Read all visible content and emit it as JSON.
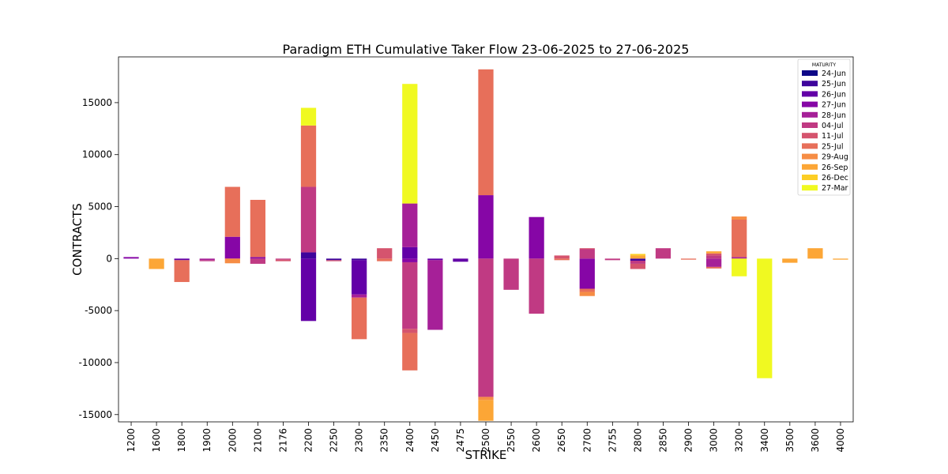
{
  "chart_data": {
    "type": "bar",
    "stacked": true,
    "title": "Paradigm ETH Cumulative Taker Flow 23-06-2025 to 27-06-2025",
    "xlabel": "STRIKE",
    "ylabel": "CONTRACTS",
    "ylim": [
      -15700,
      19400
    ],
    "yticks": [
      -15000,
      -10000,
      -5000,
      0,
      5000,
      10000,
      15000
    ],
    "grid": false,
    "legend": {
      "title": "MATURITY",
      "placement": "top-right"
    },
    "categories": [
      "1200",
      "1600",
      "1800",
      "1900",
      "2000",
      "2100",
      "2176",
      "2200",
      "2250",
      "2300",
      "2350",
      "2400",
      "2450",
      "2475",
      "2500",
      "2550",
      "2600",
      "2650",
      "2700",
      "2755",
      "2800",
      "2850",
      "2900",
      "3000",
      "3200",
      "3400",
      "3500",
      "3600",
      "4000"
    ],
    "series": [
      {
        "name": "24-Jun",
        "color": "#0d0887",
        "values": [
          0,
          0,
          0,
          0,
          0,
          0,
          0,
          0,
          0,
          0,
          0,
          0,
          0,
          0,
          0,
          0,
          0,
          0,
          0,
          0,
          0,
          0,
          0,
          0,
          0,
          0,
          0,
          0,
          0
        ]
      },
      {
        "name": "25-Jun",
        "color": "#3e049c",
        "values": [
          0,
          0,
          0,
          0,
          0,
          0,
          0,
          600,
          -150,
          -150,
          0,
          0,
          0,
          0,
          0,
          0,
          0,
          0,
          0,
          0,
          -200,
          0,
          0,
          0,
          0,
          0,
          0,
          0,
          0
        ]
      },
      {
        "name": "26-Jun",
        "color": "#6300a7",
        "values": [
          0,
          0,
          -150,
          0,
          0,
          0,
          0,
          -6000,
          0,
          -3300,
          0,
          1100,
          -150,
          -300,
          0,
          0,
          0,
          0,
          0,
          0,
          0,
          0,
          0,
          0,
          0,
          0,
          0,
          0,
          0
        ]
      },
      {
        "name": "27-Jun",
        "color": "#8606a6",
        "values": [
          150,
          0,
          0,
          0,
          2100,
          150,
          0,
          0,
          0,
          0,
          0,
          -350,
          0,
          0,
          6100,
          0,
          4000,
          0,
          -2900,
          0,
          0,
          0,
          0,
          0,
          0,
          0,
          0,
          0,
          0
        ]
      },
      {
        "name": "28-Jun",
        "color": "#a62098",
        "values": [
          0,
          0,
          0,
          -150,
          0,
          0,
          0,
          0,
          0,
          -300,
          0,
          4200,
          -6700,
          0,
          0,
          0,
          0,
          0,
          0,
          0,
          0,
          0,
          0,
          -800,
          150,
          0,
          0,
          0,
          0
        ]
      },
      {
        "name": "04-Jul",
        "color": "#c03a83",
        "values": [
          0,
          0,
          0,
          -100,
          0,
          -500,
          -100,
          6300,
          0,
          0,
          0,
          -6400,
          0,
          0,
          -13300,
          -3000,
          -5300,
          0,
          900,
          -150,
          -300,
          1000,
          0,
          300,
          0,
          0,
          0,
          0,
          0
        ]
      },
      {
        "name": "11-Jul",
        "color": "#d5546e",
        "values": [
          0,
          0,
          0,
          0,
          0,
          0,
          -150,
          0,
          -100,
          0,
          1000,
          -400,
          0,
          0,
          0,
          0,
          0,
          300,
          100,
          0,
          -500,
          0,
          0,
          200,
          0,
          0,
          0,
          0,
          0
        ]
      },
      {
        "name": "25-Jul",
        "color": "#e76f5a",
        "values": [
          0,
          0,
          -2100,
          0,
          4800,
          5500,
          0,
          5900,
          0,
          -4000,
          -250,
          -3600,
          0,
          0,
          12100,
          0,
          0,
          -150,
          -300,
          0,
          0,
          0,
          -100,
          -150,
          3600,
          0,
          0,
          0,
          0
        ]
      },
      {
        "name": "29-Aug",
        "color": "#f68d45",
        "values": [
          0,
          0,
          0,
          0,
          -450,
          0,
          0,
          0,
          0,
          0,
          0,
          0,
          0,
          0,
          -300,
          0,
          0,
          0,
          -400,
          0,
          0,
          0,
          0,
          0,
          300,
          0,
          0,
          0,
          0
        ]
      },
      {
        "name": "26-Sep",
        "color": "#fca636",
        "values": [
          0,
          -1000,
          0,
          0,
          0,
          0,
          0,
          0,
          0,
          0,
          0,
          0,
          0,
          0,
          -2000,
          0,
          0,
          0,
          0,
          0,
          300,
          0,
          0,
          200,
          0,
          0,
          -400,
          1000,
          -100
        ]
      },
      {
        "name": "26-Dec",
        "color": "#fcce25",
        "values": [
          0,
          0,
          0,
          0,
          0,
          0,
          0,
          0,
          0,
          0,
          0,
          0,
          0,
          0,
          0,
          0,
          0,
          0,
          0,
          0,
          150,
          0,
          0,
          0,
          0,
          0,
          0,
          0,
          0
        ]
      },
      {
        "name": "27-Mar",
        "color": "#f0f921",
        "values": [
          0,
          0,
          0,
          0,
          0,
          0,
          0,
          1700,
          0,
          0,
          0,
          11500,
          0,
          0,
          0,
          0,
          0,
          0,
          0,
          0,
          0,
          0,
          0,
          0,
          -1700,
          -11500,
          0,
          0,
          0
        ]
      }
    ]
  }
}
